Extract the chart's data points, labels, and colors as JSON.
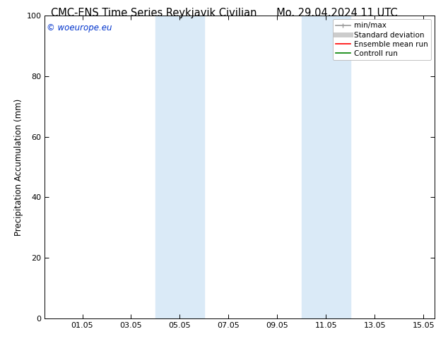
{
  "title_left": "CMC-ENS Time Series Reykjavik Civilian",
  "title_right": "Mo. 29.04.2024 11 UTC",
  "ylabel": "Precipitation Accumulation (mm)",
  "ylim": [
    0,
    100
  ],
  "yticks": [
    0,
    20,
    40,
    60,
    80,
    100
  ],
  "xlim": [
    0,
    16.0
  ],
  "xtick_labels": [
    "01.05",
    "03.05",
    "05.05",
    "07.05",
    "09.05",
    "11.05",
    "13.05",
    "15.05"
  ],
  "shaded_bands": [
    {
      "xmin": 4.542,
      "xmax": 6.542
    },
    {
      "xmin": 10.542,
      "xmax": 12.542
    }
  ],
  "shaded_color": "#daeaf7",
  "background_color": "#ffffff",
  "watermark_text": "© woeurope.eu",
  "watermark_color": "#0033cc",
  "legend_entries": [
    {
      "label": "min/max",
      "color": "#999999",
      "lw": 1.2,
      "style": "line_with_caps"
    },
    {
      "label": "Standard deviation",
      "color": "#cccccc",
      "lw": 5,
      "style": "line"
    },
    {
      "label": "Ensemble mean run",
      "color": "#ff0000",
      "lw": 1.2,
      "style": "line"
    },
    {
      "label": "Controll run",
      "color": "#008000",
      "lw": 1.2,
      "style": "line"
    }
  ],
  "title_fontsize": 10.5,
  "axis_fontsize": 8.5,
  "tick_fontsize": 8,
  "watermark_fontsize": 8.5,
  "legend_fontsize": 7.5
}
